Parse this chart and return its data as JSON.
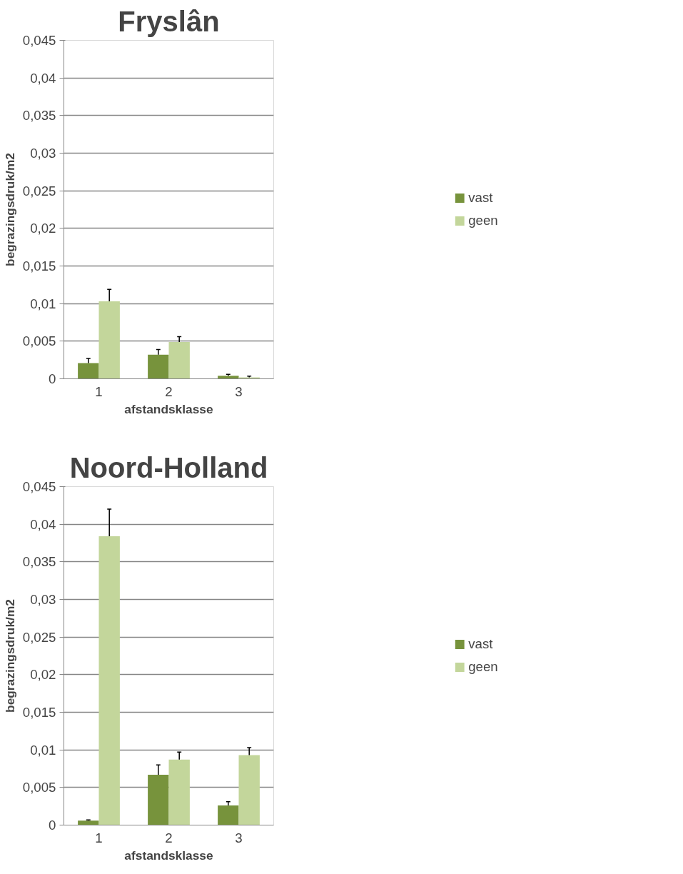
{
  "chart_data": [
    {
      "type": "bar",
      "title": "Fryslân",
      "xlabel": "afstandsklasse",
      "ylabel": "begrazingsdruk/m2",
      "categories": [
        "1",
        "2",
        "3"
      ],
      "series": [
        {
          "name": "vast",
          "color": "#77933c",
          "values": [
            0.0021,
            0.0032,
            0.0004
          ],
          "errors": [
            [
              0.0021,
              0.0027
            ],
            [
              0.0032,
              0.0039
            ],
            [
              0.0004,
              0.0006
            ]
          ]
        },
        {
          "name": "geen",
          "color": "#c3d69b",
          "values": [
            0.0103,
            0.0049,
            0.0002
          ],
          "errors": [
            [
              0.0103,
              0.0119
            ],
            [
              0.0049,
              0.0056
            ],
            [
              0.0002,
              0.00035
            ]
          ]
        }
      ],
      "ylim": [
        0,
        0.045
      ],
      "yticks": [
        0,
        {
          "value": 0.005,
          "label": "0,005"
        },
        {
          "value": 0.01,
          "label": "0,01"
        },
        {
          "value": 0.015,
          "label": "0,015"
        },
        {
          "value": 0.02,
          "label": "0,02"
        },
        {
          "value": 0.025,
          "label": "0,025"
        },
        {
          "value": 0.03,
          "label": "0,03"
        },
        {
          "value": 0.035,
          "label": "0,035"
        },
        {
          "value": 0.04,
          "label": "0,04"
        },
        {
          "value": 0.045,
          "label": "0,045"
        }
      ],
      "grid": "y",
      "legend": "right"
    },
    {
      "type": "bar",
      "title": "Noord-Holland",
      "xlabel": "afstandsklasse",
      "ylabel": "begrazingsdruk/m2",
      "categories": [
        "1",
        "2",
        "3"
      ],
      "series": [
        {
          "name": "vast",
          "color": "#77933c",
          "values": [
            0.0006,
            0.0067,
            0.0026
          ],
          "errors": [
            [
              0.0006,
              0.0007
            ],
            [
              0.0067,
              0.008
            ],
            [
              0.0026,
              0.0031
            ]
          ]
        },
        {
          "name": "geen",
          "color": "#c3d69b",
          "values": [
            0.0384,
            0.0087,
            0.0093
          ],
          "errors": [
            [
              0.0384,
              0.042
            ],
            [
              0.0087,
              0.0097
            ],
            [
              0.0093,
              0.0103
            ]
          ]
        }
      ],
      "ylim": [
        0,
        0.045
      ],
      "yticks": [
        0,
        {
          "value": 0.005,
          "label": "0,005"
        },
        {
          "value": 0.01,
          "label": "0,01"
        },
        {
          "value": 0.015,
          "label": "0,015"
        },
        {
          "value": 0.02,
          "label": "0,02"
        },
        {
          "value": 0.025,
          "label": "0,025"
        },
        {
          "value": 0.03,
          "label": "0,03"
        },
        {
          "value": 0.035,
          "label": "0,035"
        },
        {
          "value": 0.04,
          "label": "0,04"
        },
        {
          "value": 0.045,
          "label": "0,045"
        }
      ],
      "grid": "y",
      "legend": "right"
    }
  ]
}
